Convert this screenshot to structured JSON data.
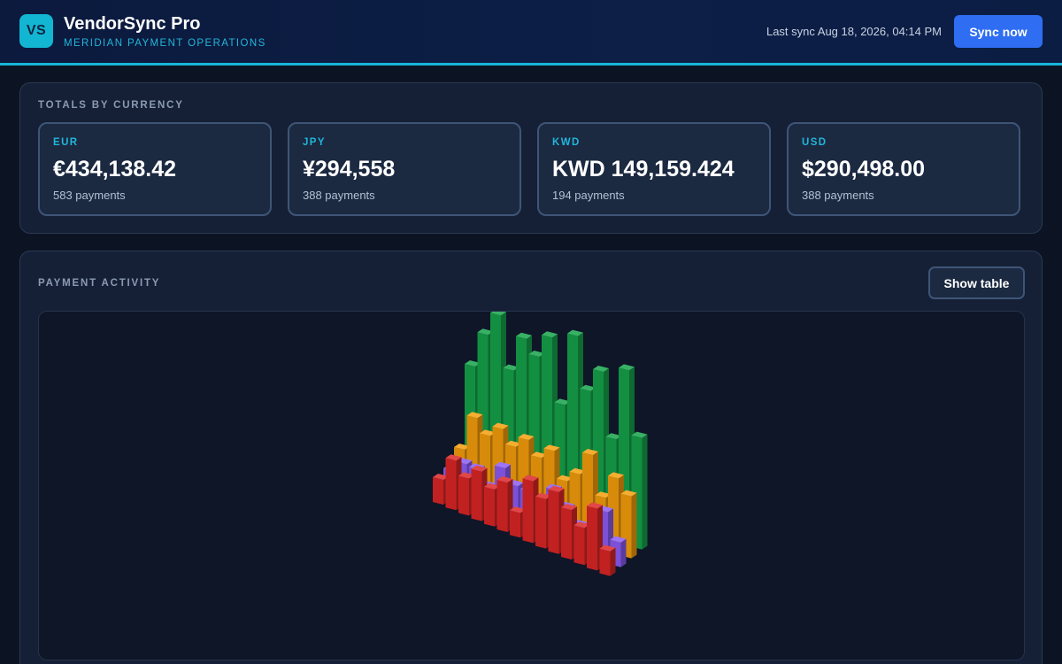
{
  "app": {
    "logo_text": "VS",
    "title": "VendorSync Pro",
    "subtitle": "MERIDIAN PAYMENT OPERATIONS",
    "last_sync": "Last sync Aug 18, 2026, 04:14 PM",
    "sync_label": "Sync now"
  },
  "totals": {
    "heading": "TOTALS BY CURRENCY",
    "cards": [
      {
        "code": "EUR",
        "amount": "€434,138.42",
        "count": "583 payments"
      },
      {
        "code": "JPY",
        "amount": "¥294,558",
        "count": "388 payments"
      },
      {
        "code": "KWD",
        "amount": "KWD 149,159.424",
        "count": "194 payments"
      },
      {
        "code": "USD",
        "amount": "$290,498.00",
        "count": "388 payments"
      }
    ]
  },
  "activity": {
    "heading": "PAYMENT ACTIVITY",
    "show_table_label": "Show table"
  },
  "colors": {
    "accent": "#17b6d8",
    "primary_button": "#2f6ef2",
    "series_colors": [
      "#dc2626",
      "#8b5cf6",
      "#f59e0b",
      "#16a34a"
    ]
  },
  "chart_data": {
    "type": "bar",
    "subtype": "3d-bar",
    "title": "",
    "xlabel": "",
    "ylabel": "",
    "grid": false,
    "legend": "none",
    "series": [
      {
        "values": [
          2,
          4,
          3,
          4,
          3,
          4,
          2,
          5,
          4,
          5,
          4,
          3,
          5,
          2
        ]
      },
      {
        "values": [
          2,
          3,
          3,
          2,
          4,
          3,
          3,
          2,
          4,
          3,
          2,
          2,
          4,
          2
        ]
      },
      {
        "values": [
          3,
          6,
          5,
          6,
          5,
          6,
          5,
          6,
          4,
          5,
          7,
          4,
          6,
          5
        ]
      },
      {
        "values": [
          9,
          12,
          14,
          10,
          13,
          12,
          14,
          9,
          15,
          11,
          13,
          8,
          14,
          9
        ]
      }
    ]
  }
}
